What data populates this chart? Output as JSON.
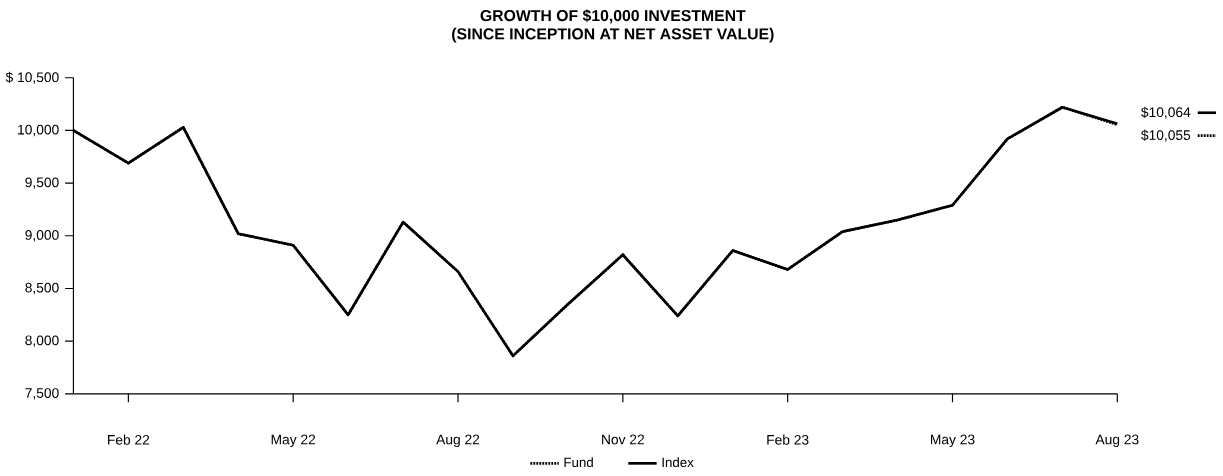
{
  "chart_data": {
    "type": "line",
    "title": "GROWTH OF $10,000 INVESTMENT",
    "subtitle": "(SINCE INCEPTION AT NET ASSET VALUE)",
    "x": [
      "2022-01",
      "2022-02",
      "2022-03",
      "2022-04",
      "2022-05",
      "2022-06",
      "2022-07",
      "2022-08",
      "2022-09",
      "2022-10",
      "2022-11",
      "2022-12",
      "2023-01",
      "2023-02",
      "2023-03",
      "2023-04",
      "2023-05",
      "2023-06",
      "2023-07",
      "2023-08"
    ],
    "series": [
      {
        "name": "Fund",
        "color": "#000000",
        "line_style": "dotted",
        "values": [
          10000,
          9690,
          10030,
          9020,
          8910,
          8250,
          9130,
          8660,
          7860,
          8350,
          8820,
          8240,
          8860,
          8680,
          9040,
          9150,
          9290,
          9920,
          10220,
          10055
        ]
      },
      {
        "name": "Index",
        "color": "#000000",
        "line_style": "solid",
        "values": [
          10000,
          9690,
          10030,
          9020,
          8910,
          8250,
          9130,
          8660,
          7860,
          8350,
          8820,
          8240,
          8860,
          8680,
          9040,
          9150,
          9290,
          9920,
          10220,
          10064
        ]
      }
    ],
    "xlim": [
      "2022-01",
      "2023-08"
    ],
    "xticks": [
      {
        "value": "2022-02",
        "label": "Feb 22"
      },
      {
        "value": "2022-05",
        "label": "May 22"
      },
      {
        "value": "2022-08",
        "label": "Aug 22"
      },
      {
        "value": "2022-11",
        "label": "Nov 22"
      },
      {
        "value": "2023-02",
        "label": "Feb 23"
      },
      {
        "value": "2023-05",
        "label": "May 23"
      },
      {
        "value": "2023-08",
        "label": "Aug 23"
      }
    ],
    "ylim": [
      7500,
      10500
    ],
    "yticks": [
      {
        "value": 7500,
        "label": "7,500"
      },
      {
        "value": 8000,
        "label": "8,000"
      },
      {
        "value": 8500,
        "label": "8,500"
      },
      {
        "value": 9000,
        "label": "9,000"
      },
      {
        "value": 9500,
        "label": "9,500"
      },
      {
        "value": 10000,
        "label": "10,000"
      },
      {
        "value": 10500,
        "label": "$ 10,500"
      }
    ],
    "annotations": [
      {
        "text": "$10,064",
        "x": "2023-08",
        "y": 10064
      },
      {
        "text": "$10,055",
        "x": "2023-08",
        "y": 10055
      }
    ],
    "grid": false,
    "legend": "bottom",
    "marker": "none"
  }
}
